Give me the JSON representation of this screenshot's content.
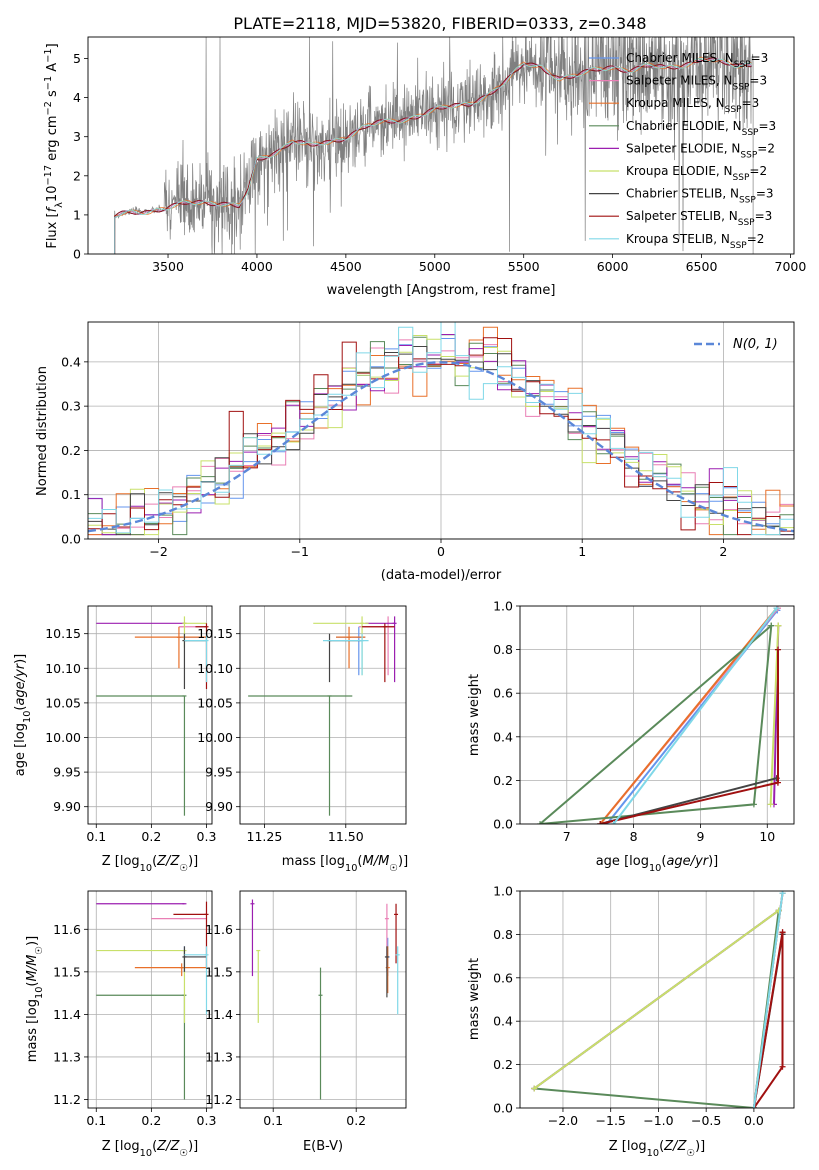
{
  "figure_title": "PLATE=2118, MJD=53820, FIBERID=0333, z=0.348",
  "colors": {
    "chabrier_miles": "#6495ed",
    "salpeter_miles": "#e97fb5",
    "kroupa_miles": "#e8702a",
    "chabrier_elodie": "#5a8a5a",
    "salpeter_elodie": "#9b1fb0",
    "kroupa_elodie": "#c8e06a",
    "chabrier_stelib": "#444444",
    "salpeter_stelib": "#a01010",
    "kroupa_stelib": "#80d8e8",
    "data": "#808080",
    "gaussian": "#5b87d8"
  },
  "chart_data": [
    {
      "id": "spectrum",
      "type": "line",
      "title": "PLATE=2118, MJD=53820, FIBERID=0333, z=0.348",
      "xlabel": "wavelength [Angstrom, rest frame]",
      "ylabel": "Flux [f_λ 10^-17 erg cm^-2 s^-1 A^-1]",
      "xlim": [
        3050,
        7020
      ],
      "ylim": [
        0,
        5.55
      ],
      "xticks": [
        3500,
        4000,
        4500,
        5000,
        5500,
        6000,
        6500,
        7000
      ],
      "yticks": [
        0,
        1,
        2,
        3,
        4,
        5
      ],
      "legend_position": "top-right",
      "series": [
        {
          "name": "Chabrier MILES, N_SSP=3",
          "color_key": "chabrier_miles"
        },
        {
          "name": "Salpeter MILES, N_SSP=3",
          "color_key": "salpeter_miles"
        },
        {
          "name": "Kroupa MILES, N_SSP=3",
          "color_key": "kroupa_miles"
        },
        {
          "name": "Chabrier ELODIE, N_SSP=3",
          "color_key": "chabrier_elodie"
        },
        {
          "name": "Salpeter ELODIE, N_SSP=2",
          "color_key": "salpeter_elodie"
        },
        {
          "name": "Kroupa ELODIE, N_SSP=2",
          "color_key": "kroupa_elodie"
        },
        {
          "name": "Chabrier STELIB, N_SSP=3",
          "color_key": "chabrier_stelib"
        },
        {
          "name": "Salpeter STELIB, N_SSP=3",
          "color_key": "salpeter_stelib"
        },
        {
          "name": "Kroupa STELIB, N_SSP=2",
          "color_key": "kroupa_stelib"
        }
      ],
      "continuum": {
        "x": [
          3200,
          3250,
          3300,
          3400,
          3500,
          3600,
          3700,
          3800,
          3900,
          3950,
          4000,
          4100,
          4200,
          4300,
          4400,
          4500,
          4600,
          4700,
          4800,
          4900,
          5000,
          5100,
          5200,
          5300,
          5400,
          5500,
          5600,
          5700,
          5800,
          5900,
          6000,
          6100,
          6200,
          6300,
          6400,
          6500,
          6600,
          6700,
          6800
        ],
        "y": [
          0.95,
          1.05,
          1.1,
          1.1,
          1.15,
          1.3,
          1.35,
          1.3,
          1.2,
          1.6,
          2.4,
          2.6,
          2.9,
          2.75,
          2.85,
          3.0,
          3.25,
          3.35,
          3.4,
          3.55,
          3.7,
          3.75,
          3.85,
          4.1,
          4.4,
          4.85,
          4.8,
          4.5,
          4.55,
          4.7,
          4.8,
          4.7,
          4.8,
          4.75,
          4.85,
          5.0,
          4.9,
          4.8,
          4.9
        ]
      }
    },
    {
      "id": "residuals",
      "type": "histogram",
      "xlabel": "(data-model)/error",
      "ylabel": "Normed distribution",
      "xlim": [
        -2.5,
        2.5
      ],
      "ylim": [
        0,
        0.49
      ],
      "xticks": [
        -2,
        -1,
        0,
        1,
        2
      ],
      "yticks": [
        0.0,
        0.1,
        0.2,
        0.3,
        0.4
      ],
      "grid": true,
      "legend_position": "top-right",
      "legend_label": "N(0, 1)",
      "bin_width": 0.1,
      "bin_start": -2.5
    },
    {
      "id": "age-vs-Z",
      "type": "scatter",
      "xlabel": "Z [log10(Z/Z☉)]",
      "ylabel": "age  [log10(age/yr)]",
      "xlim": [
        0.085,
        0.31
      ],
      "ylim": [
        9.875,
        10.19
      ],
      "xticks": [
        0.1,
        0.2,
        0.3
      ],
      "yticks": [
        9.9,
        9.95,
        10.0,
        10.05,
        10.1,
        10.15
      ],
      "grid": true,
      "points": [
        {
          "c": "chabrier_miles",
          "x": 0.25,
          "y": 10.145,
          "xerr": [
            0.25,
            0.3
          ],
          "yerr": [
            10.145,
            10.145
          ]
        },
        {
          "c": "salpeter_miles",
          "x": 0.255,
          "y": 10.16,
          "xerr": [
            0.25,
            0.3
          ],
          "yerr": [
            10.16,
            10.16
          ]
        },
        {
          "c": "kroupa_miles",
          "x": 0.25,
          "y": 10.145,
          "xerr": [
            0.17,
            0.3
          ],
          "yerr": [
            10.1,
            10.16
          ]
        },
        {
          "c": "chabrier_elodie",
          "x": 0.26,
          "y": 10.06,
          "xerr": [
            0.1,
            0.26
          ],
          "yerr": [
            9.887,
            10.06
          ]
        },
        {
          "c": "salpeter_elodie",
          "x": 0.26,
          "y": 10.165,
          "xerr": [
            0.1,
            0.26
          ],
          "yerr": [
            10.165,
            10.165
          ]
        },
        {
          "c": "kroupa_elodie",
          "x": 0.26,
          "y": 10.165,
          "xerr": [
            0.26,
            0.3
          ],
          "yerr": [
            10.13,
            10.175
          ]
        },
        {
          "c": "chabrier_stelib",
          "x": 0.26,
          "y": 10.14,
          "xerr": [
            0.26,
            0.3
          ],
          "yerr": [
            10.07,
            10.15
          ]
        },
        {
          "c": "salpeter_stelib",
          "x": 0.3,
          "y": 10.16,
          "xerr": [
            0.28,
            0.3
          ],
          "yerr": [
            10.07,
            10.165
          ]
        },
        {
          "c": "kroupa_stelib",
          "x": 0.3,
          "y": 10.14,
          "xerr": [
            0.26,
            0.3
          ],
          "yerr": [
            10.08,
            10.15
          ]
        }
      ]
    },
    {
      "id": "age-vs-mass",
      "type": "scatter",
      "xlabel": "mass [log10(M/M☉)]",
      "ylabel": "",
      "xlim": [
        11.175,
        11.685
      ],
      "ylim": [
        9.875,
        10.19
      ],
      "xticks": [
        11.25,
        11.5
      ],
      "yticks": [
        9.9,
        9.95,
        10.0,
        10.05,
        10.1,
        10.15
      ],
      "grid": true,
      "points": [
        {
          "c": "chabrier_miles",
          "x": 11.54,
          "y": 10.145,
          "xerr": [
            11.47,
            11.56
          ],
          "yerr": [
            10.09,
            10.16
          ]
        },
        {
          "c": "salpeter_miles",
          "x": 11.63,
          "y": 10.16,
          "xerr": [
            11.54,
            11.65
          ],
          "yerr": [
            10.09,
            10.175
          ]
        },
        {
          "c": "kroupa_miles",
          "x": 11.51,
          "y": 10.145,
          "xerr": [
            11.47,
            11.56
          ],
          "yerr": [
            10.1,
            10.16
          ]
        },
        {
          "c": "chabrier_elodie",
          "x": 11.45,
          "y": 10.06,
          "xerr": [
            11.2,
            11.52
          ],
          "yerr": [
            9.887,
            10.06
          ]
        },
        {
          "c": "salpeter_elodie",
          "x": 11.65,
          "y": 10.165,
          "xerr": [
            11.56,
            11.65
          ],
          "yerr": [
            10.08,
            10.175
          ]
        },
        {
          "c": "kroupa_elodie",
          "x": 11.55,
          "y": 10.165,
          "xerr": [
            11.4,
            11.57
          ],
          "yerr": [
            10.09,
            10.175
          ]
        },
        {
          "c": "chabrier_stelib",
          "x": 11.45,
          "y": 10.14,
          "xerr": [
            11.45,
            11.55
          ],
          "yerr": [
            10.08,
            10.15
          ]
        },
        {
          "c": "salpeter_stelib",
          "x": 11.62,
          "y": 10.16,
          "xerr": [
            11.55,
            11.65
          ],
          "yerr": [
            10.08,
            10.165
          ]
        },
        {
          "c": "kroupa_stelib",
          "x": 11.55,
          "y": 10.14,
          "xerr": [
            11.43,
            11.57
          ],
          "yerr": [
            10.09,
            10.15
          ]
        }
      ]
    },
    {
      "id": "mass-weight-vs-age",
      "type": "line",
      "xlabel": "age  [log10(age/yr)]",
      "ylabel": "mass weight",
      "xlim": [
        6.3,
        10.4
      ],
      "ylim": [
        0,
        1.0
      ],
      "xticks": [
        7,
        8,
        9,
        10
      ],
      "yticks": [
        0.0,
        0.2,
        0.4,
        0.6,
        0.8,
        1.0
      ],
      "grid": true,
      "series": [
        {
          "c": "chabrier_miles",
          "x": [
            10.15,
            7.6,
            10.15
          ],
          "y": [
            0.98,
            0.0,
            0.98
          ]
        },
        {
          "c": "salpeter_miles",
          "x": [
            10.16,
            7.5,
            10.16
          ],
          "y": [
            0.99,
            0.0,
            0.99
          ]
        },
        {
          "c": "kroupa_miles",
          "x": [
            10.14,
            7.5,
            10.14
          ],
          "y": [
            0.99,
            0.0,
            0.99
          ]
        },
        {
          "c": "chabrier_elodie",
          "x": [
            10.06,
            6.6,
            9.8,
            10.06
          ],
          "y": [
            0.91,
            0.0,
            0.09,
            0.91
          ]
        },
        {
          "c": "salpeter_elodie",
          "x": [
            10.165,
            10.1,
            10.165
          ],
          "y": [
            0.91,
            0.09,
            0.91
          ]
        },
        {
          "c": "kroupa_elodie",
          "x": [
            10.165,
            10.05,
            10.165
          ],
          "y": [
            0.91,
            0.09,
            0.91
          ]
        },
        {
          "c": "chabrier_stelib",
          "x": [
            10.14,
            7.5,
            10.14
          ],
          "y": [
            0.21,
            0.0,
            0.21
          ]
        },
        {
          "c": "salpeter_stelib",
          "x": [
            10.16,
            7.5,
            10.16,
            10.16
          ],
          "y": [
            0.19,
            0.0,
            0.19,
            0.8
          ]
        },
        {
          "c": "kroupa_stelib",
          "x": [
            10.14,
            7.7,
            10.14
          ],
          "y": [
            0.99,
            0.0,
            0.99
          ]
        }
      ]
    },
    {
      "id": "mass-vs-Z",
      "type": "scatter",
      "xlabel": "Z [log10(Z/Z☉)]",
      "ylabel": "mass [log10(M/M☉)]",
      "xlim": [
        0.085,
        0.31
      ],
      "ylim": [
        11.18,
        11.69
      ],
      "xticks": [
        0.1,
        0.2,
        0.3
      ],
      "yticks": [
        11.2,
        11.3,
        11.4,
        11.5,
        11.6
      ],
      "grid": true,
      "points": [
        {
          "c": "chabrier_miles",
          "x": 0.26,
          "y": 11.535,
          "xerr": [
            0.26,
            0.3
          ],
          "yerr": [
            11.5,
            11.56
          ]
        },
        {
          "c": "salpeter_miles",
          "x": 0.255,
          "y": 11.625,
          "xerr": [
            0.2,
            0.3
          ],
          "yerr": [
            11.625,
            11.625
          ]
        },
        {
          "c": "kroupa_miles",
          "x": 0.255,
          "y": 11.51,
          "xerr": [
            0.17,
            0.3
          ],
          "yerr": [
            11.49,
            11.52
          ]
        },
        {
          "c": "chabrier_elodie",
          "x": 0.26,
          "y": 11.445,
          "xerr": [
            0.1,
            0.26
          ],
          "yerr": [
            11.2,
            11.445
          ]
        },
        {
          "c": "salpeter_elodie",
          "x": 0.26,
          "y": 11.66,
          "xerr": [
            0.1,
            0.26
          ],
          "yerr": [
            11.66,
            11.66
          ]
        },
        {
          "c": "kroupa_elodie",
          "x": 0.26,
          "y": 11.55,
          "xerr": [
            0.1,
            0.26
          ],
          "yerr": [
            11.38,
            11.55
          ]
        },
        {
          "c": "chabrier_stelib",
          "x": 0.26,
          "y": 11.535,
          "xerr": [
            0.26,
            0.3
          ],
          "yerr": [
            11.5,
            11.56
          ]
        },
        {
          "c": "salpeter_stelib",
          "x": 0.3,
          "y": 11.635,
          "xerr": [
            0.24,
            0.3
          ],
          "yerr": [
            11.51,
            11.665
          ]
        },
        {
          "c": "kroupa_stelib",
          "x": 0.3,
          "y": 11.54,
          "xerr": [
            0.26,
            0.3
          ],
          "yerr": [
            11.4,
            11.56
          ]
        }
      ]
    },
    {
      "id": "mass-vs-EBV",
      "type": "scatter",
      "xlabel": "E(B-V)",
      "ylabel": "",
      "xlim": [
        0.06,
        0.26
      ],
      "ylim": [
        11.18,
        11.69
      ],
      "xticks": [
        0.1,
        0.2
      ],
      "yticks": [
        11.2,
        11.3,
        11.4,
        11.5,
        11.6
      ],
      "grid": true,
      "points": [
        {
          "c": "chabrier_miles",
          "x": 0.238,
          "y": 11.535,
          "yerr": [
            11.49,
            11.58
          ]
        },
        {
          "c": "salpeter_miles",
          "x": 0.237,
          "y": 11.625,
          "yerr": [
            11.5,
            11.66
          ]
        },
        {
          "c": "kroupa_miles",
          "x": 0.238,
          "y": 11.51,
          "yerr": [
            11.45,
            11.56
          ]
        },
        {
          "c": "chabrier_elodie",
          "x": 0.157,
          "y": 11.445,
          "yerr": [
            11.2,
            11.51
          ]
        },
        {
          "c": "salpeter_elodie",
          "x": 0.075,
          "y": 11.66,
          "yerr": [
            11.49,
            11.67
          ]
        },
        {
          "c": "kroupa_elodie",
          "x": 0.082,
          "y": 11.55,
          "yerr": [
            11.38,
            11.55
          ]
        },
        {
          "c": "chabrier_stelib",
          "x": 0.237,
          "y": 11.535,
          "yerr": [
            11.44,
            11.56
          ]
        },
        {
          "c": "salpeter_stelib",
          "x": 0.248,
          "y": 11.635,
          "yerr": [
            11.52,
            11.66
          ]
        },
        {
          "c": "kroupa_stelib",
          "x": 0.25,
          "y": 11.54,
          "yerr": [
            11.4,
            11.56
          ]
        }
      ]
    },
    {
      "id": "mass-weight-vs-Z",
      "type": "line",
      "xlabel": "Z [log10(Z/Z☉)]",
      "ylabel": "mass weight",
      "xlim": [
        -2.45,
        0.42
      ],
      "ylim": [
        0,
        1.0
      ],
      "xticks": [
        -2.0,
        -1.5,
        -1.0,
        -0.5,
        0.0
      ],
      "yticks": [
        0.0,
        0.2,
        0.4,
        0.6,
        0.8,
        1.0
      ],
      "grid": true,
      "series": [
        {
          "c": "chabrier_miles",
          "x": [
            0.3,
            0.0,
            0.3
          ],
          "y": [
            0.99,
            0.0,
            0.99
          ]
        },
        {
          "c": "salpeter_miles",
          "x": [
            0.3,
            0.0,
            0.3
          ],
          "y": [
            0.99,
            0.0,
            0.99
          ]
        },
        {
          "c": "kroupa_miles",
          "x": [
            0.3,
            0.0,
            0.3
          ],
          "y": [
            0.99,
            0.0,
            0.99
          ]
        },
        {
          "c": "chabrier_elodie",
          "x": [
            0.26,
            -2.3,
            0.0,
            0.26
          ],
          "y": [
            0.91,
            0.09,
            0.0,
            0.91
          ]
        },
        {
          "c": "salpeter_elodie",
          "x": [
            0.26,
            -2.3,
            0.26
          ],
          "y": [
            0.91,
            0.09,
            0.91
          ]
        },
        {
          "c": "kroupa_elodie",
          "x": [
            0.26,
            -2.3,
            0.26
          ],
          "y": [
            0.91,
            0.09,
            0.91
          ]
        },
        {
          "c": "chabrier_stelib",
          "x": [
            0.3,
            0.0,
            0.3
          ],
          "y": [
            0.8,
            0.0,
            0.8
          ]
        },
        {
          "c": "salpeter_stelib",
          "x": [
            0.3,
            0.0,
            0.3,
            0.3
          ],
          "y": [
            0.81,
            0.0,
            0.19,
            0.81
          ]
        },
        {
          "c": "kroupa_stelib",
          "x": [
            0.3,
            0.0,
            0.3
          ],
          "y": [
            0.99,
            0.0,
            0.99
          ]
        }
      ]
    }
  ]
}
